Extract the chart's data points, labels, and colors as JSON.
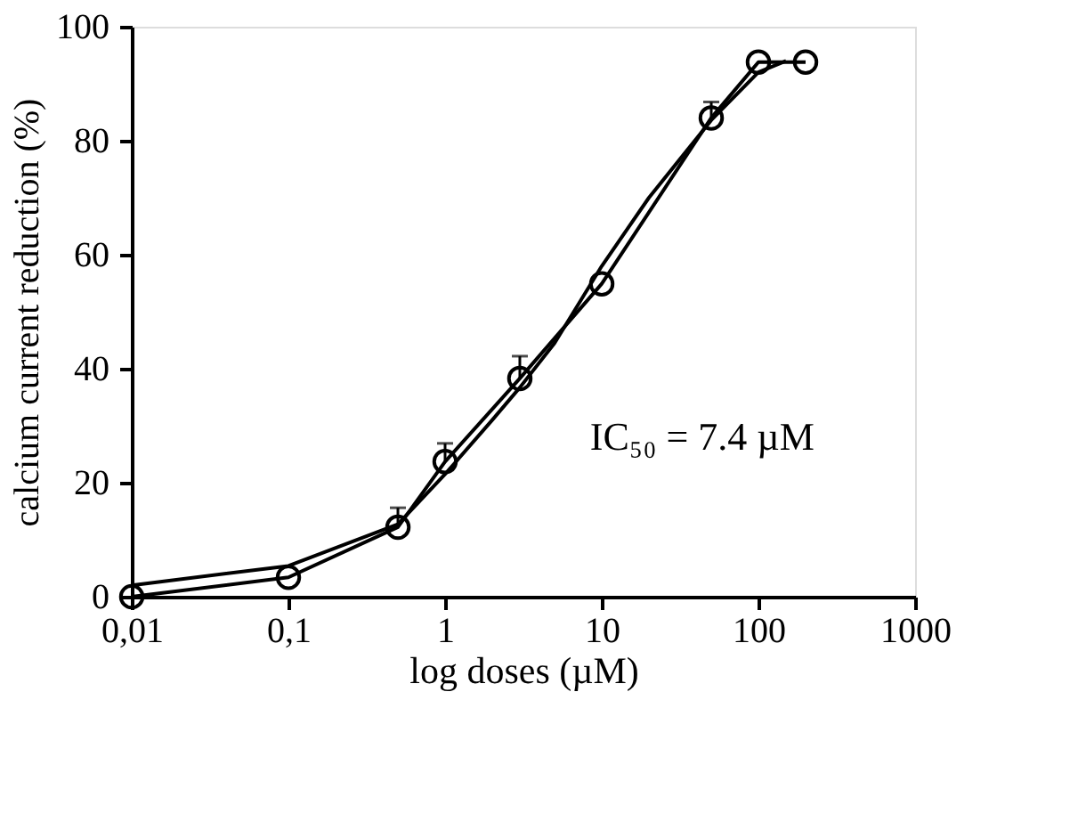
{
  "chart_data": {
    "type": "line",
    "xlabel": "log doses (µM)",
    "ylabel": "calcium current reduction (%)",
    "log": "x",
    "xlim": [
      0.01,
      1000
    ],
    "ylim": [
      0,
      100
    ],
    "xticks": [
      {
        "value": 0.01,
        "label": "0,01"
      },
      {
        "value": 0.1,
        "label": "0,1"
      },
      1,
      10,
      100,
      1000
    ],
    "yticks": [
      0,
      20,
      40,
      60,
      80,
      100
    ],
    "grid": false,
    "annotations": [
      "IC₅₀ = 7.4 µM"
    ],
    "series": [
      {
        "color": "#000000",
        "marker": "circle",
        "x": [
          0.01,
          0.1,
          0.5,
          1,
          3,
          10,
          50,
          100,
          200
        ],
        "values": [
          0,
          3.4,
          12.2,
          23.7,
          38.3,
          54.9,
          84,
          93.8,
          93.8
        ],
        "errors": [
          null,
          null,
          [
            12.2,
            15.6
          ],
          [
            23.7,
            26.9
          ],
          [
            38.3,
            42.2
          ],
          null,
          [
            84,
            86.8
          ],
          null,
          null
        ]
      },
      {
        "color": "#000000",
        "marker": "none",
        "x": [
          0.01,
          0.1,
          0.5,
          1,
          2,
          3,
          5,
          10,
          20,
          50,
          100,
          150
        ],
        "values": [
          2,
          5.4,
          12.7,
          21.5,
          31,
          36.7,
          44.5,
          58,
          70,
          83.6,
          92,
          94
        ]
      }
    ]
  }
}
